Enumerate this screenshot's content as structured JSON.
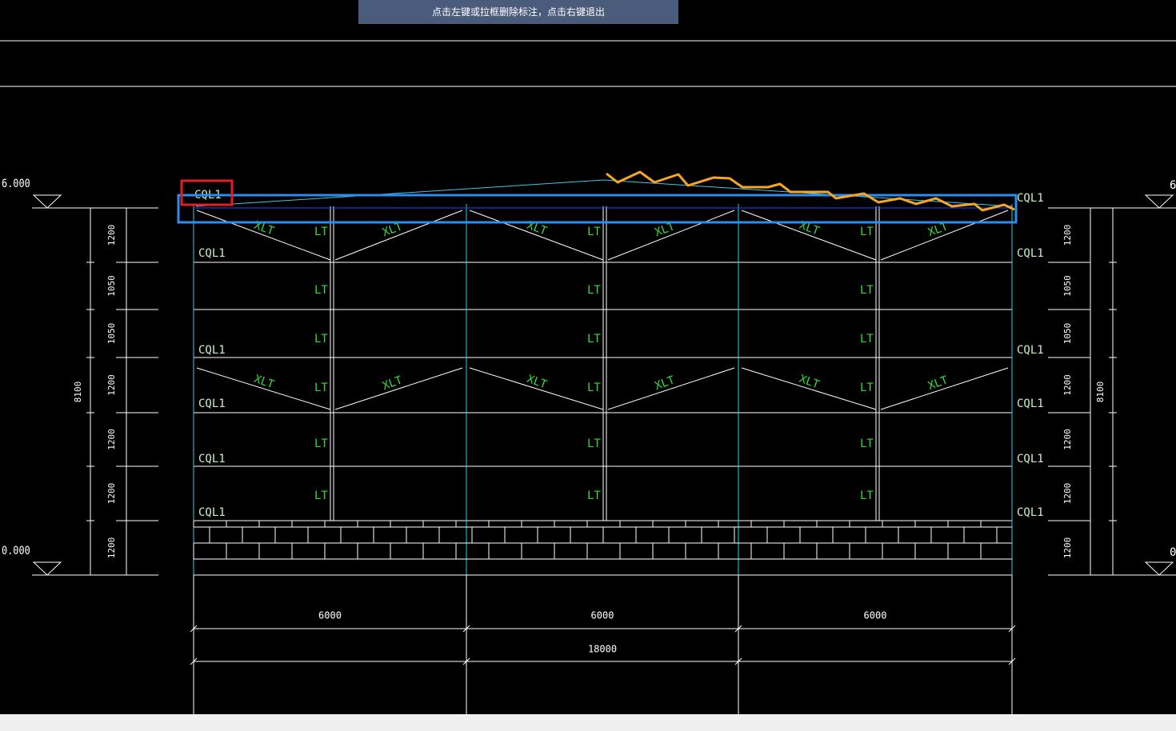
{
  "toolbar": {
    "message": "点击左键或拉框删除标注，点击右键退出"
  },
  "drawing": {
    "elevations": [
      "6.000",
      "0.000"
    ],
    "heights": [
      "1200",
      "1050",
      "1050",
      "1200",
      "1200",
      "1200",
      "1200"
    ],
    "total_height": "8100",
    "beam_label": "CQL1",
    "column_label": "LT",
    "brace_label": "XLT",
    "spans": [
      "6000",
      "6000",
      "6000"
    ],
    "total_span": "18000"
  }
}
